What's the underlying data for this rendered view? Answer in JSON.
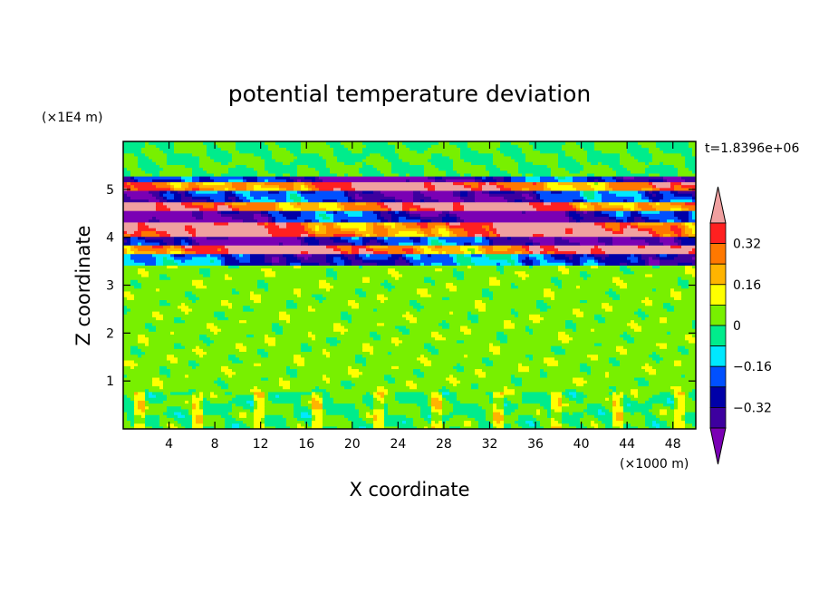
{
  "chart_data": {
    "type": "heatmap",
    "title": "potential temperature deviation",
    "xlabel": "X coordinate",
    "ylabel": "Z coordinate",
    "x_unit": "(×1000 m)",
    "y_unit": "(×1E4 m)",
    "time_label": "t=1.8396e+06",
    "xlim": [
      0,
      50
    ],
    "ylim": [
      0,
      6
    ],
    "x_ticks": [
      4,
      8,
      12,
      16,
      20,
      24,
      28,
      32,
      36,
      40,
      44,
      48
    ],
    "y_ticks": [
      1,
      2,
      3,
      4,
      5
    ],
    "colorbar": {
      "levels": [
        -0.48,
        -0.4,
        -0.32,
        -0.24,
        -0.16,
        -0.08,
        0,
        0.08,
        0.16,
        0.24,
        0.32,
        0.4,
        0.48
      ],
      "labeled_levels": [
        0.32,
        0.16,
        0,
        -0.16,
        -0.32
      ],
      "labels": [
        "0.32",
        "0.16",
        "0",
        "−0.16",
        "−0.32"
      ],
      "colors": [
        "#7a00b4",
        "#3d009f",
        "#0000a8",
        "#0050ff",
        "#00e8ff",
        "#00ec8c",
        "#78f000",
        "#ffff00",
        "#ffb400",
        "#ff7800",
        "#ff2020",
        "#f0a0a0"
      ],
      "extend": "both"
    },
    "layers": [
      {
        "z": [
          0.0,
          0.8
        ],
        "dominant": 0.0
      },
      {
        "z": [
          0.8,
          3.4
        ],
        "dominant": 0.04
      },
      {
        "z": [
          3.4,
          3.65
        ],
        "dominant": -0.3
      },
      {
        "z": [
          3.65,
          3.85
        ],
        "dominant": 0.45
      },
      {
        "z": [
          3.85,
          4.05
        ],
        "dominant": -0.42
      },
      {
        "z": [
          4.05,
          4.35
        ],
        "dominant": 0.45
      },
      {
        "z": [
          4.35,
          4.55
        ],
        "dominant": -0.45
      },
      {
        "z": [
          4.55,
          4.75
        ],
        "dominant": 0.45
      },
      {
        "z": [
          4.75,
          5.0
        ],
        "dominant": -0.4
      },
      {
        "z": [
          5.0,
          5.15
        ],
        "dominant": 0.45
      },
      {
        "z": [
          5.15,
          5.3
        ],
        "dominant": -0.45
      },
      {
        "z": [
          5.3,
          6.0
        ],
        "dominant": 0.0
      }
    ]
  }
}
